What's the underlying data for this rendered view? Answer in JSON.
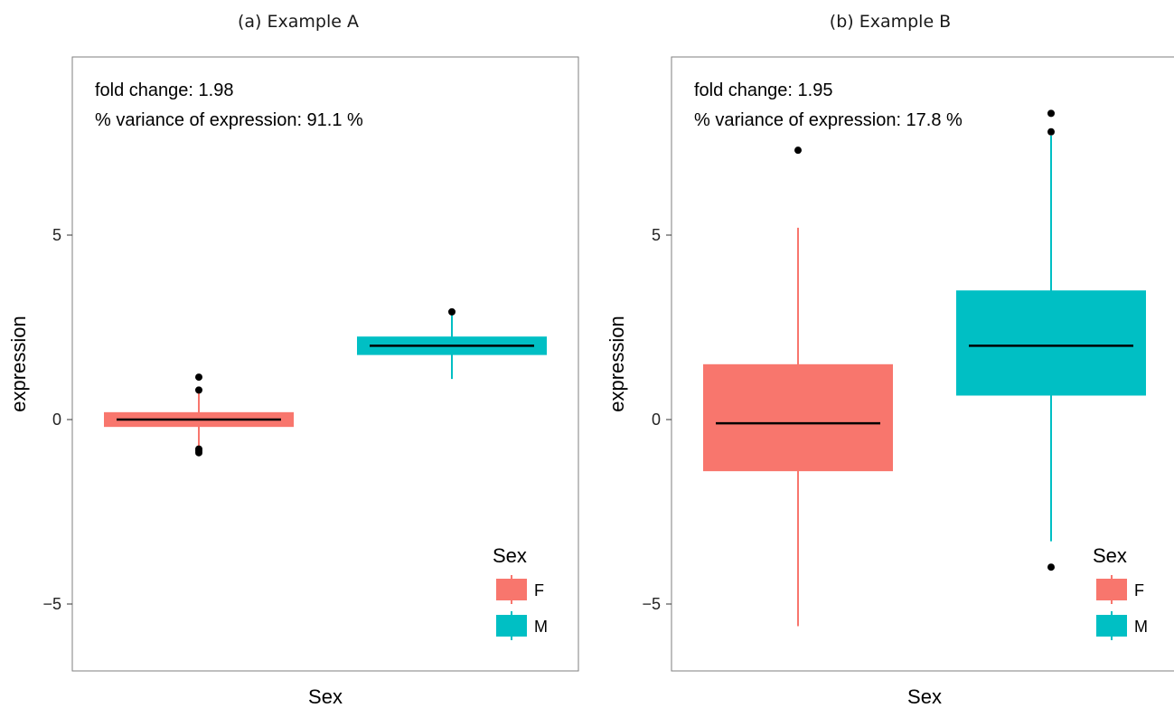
{
  "chart_data": [
    {
      "type": "box",
      "title": "(a) Example A",
      "xlabel": "Sex",
      "ylabel": "expression",
      "ylim": [
        -6.6,
        10.2
      ],
      "yticks": [
        -5,
        0,
        5
      ],
      "ytick_labels": [
        "−5",
        "0",
        "5"
      ],
      "annotations": [
        "fold change: 1.98",
        "% variance of expression: 91.1 %"
      ],
      "legend": {
        "title": "Sex",
        "position": "bottom-right",
        "entries": [
          "F",
          "M"
        ]
      },
      "categories": [
        "F",
        "M"
      ],
      "boxes": [
        {
          "name": "F",
          "color": "#F8766D",
          "whisker_low": -0.75,
          "q1": -0.2,
          "median": 0.0,
          "q3": 0.2,
          "whisker_high": 0.75,
          "outliers": [
            1.15,
            0.8,
            -0.8,
            -0.85,
            -0.9
          ]
        },
        {
          "name": "M",
          "color": "#00BFC4",
          "whisker_low": 1.1,
          "q1": 1.75,
          "median": 2.0,
          "q3": 2.25,
          "whisker_high": 2.85,
          "outliers": [
            2.92
          ]
        }
      ]
    },
    {
      "type": "box",
      "title": "(b) Example B",
      "xlabel": "Sex",
      "ylabel": "expression",
      "ylim": [
        -6.6,
        10.2
      ],
      "yticks": [
        -5,
        0,
        5
      ],
      "ytick_labels": [
        "−5",
        "0",
        "5"
      ],
      "annotations": [
        "fold change: 1.95",
        "% variance of expression: 17.8 %"
      ],
      "legend": {
        "title": "Sex",
        "position": "bottom-right",
        "entries": [
          "F",
          "M"
        ]
      },
      "categories": [
        "F",
        "M"
      ],
      "boxes": [
        {
          "name": "F",
          "color": "#F8766D",
          "whisker_low": -5.6,
          "q1": -1.4,
          "median": -0.1,
          "q3": 1.5,
          "whisker_high": 5.2,
          "outliers": [
            7.3
          ]
        },
        {
          "name": "M",
          "color": "#00BFC4",
          "whisker_low": -3.3,
          "q1": 0.65,
          "median": 2.0,
          "q3": 3.5,
          "whisker_high": 7.7,
          "outliers": [
            8.3,
            7.8,
            -4.0
          ]
        }
      ]
    }
  ]
}
